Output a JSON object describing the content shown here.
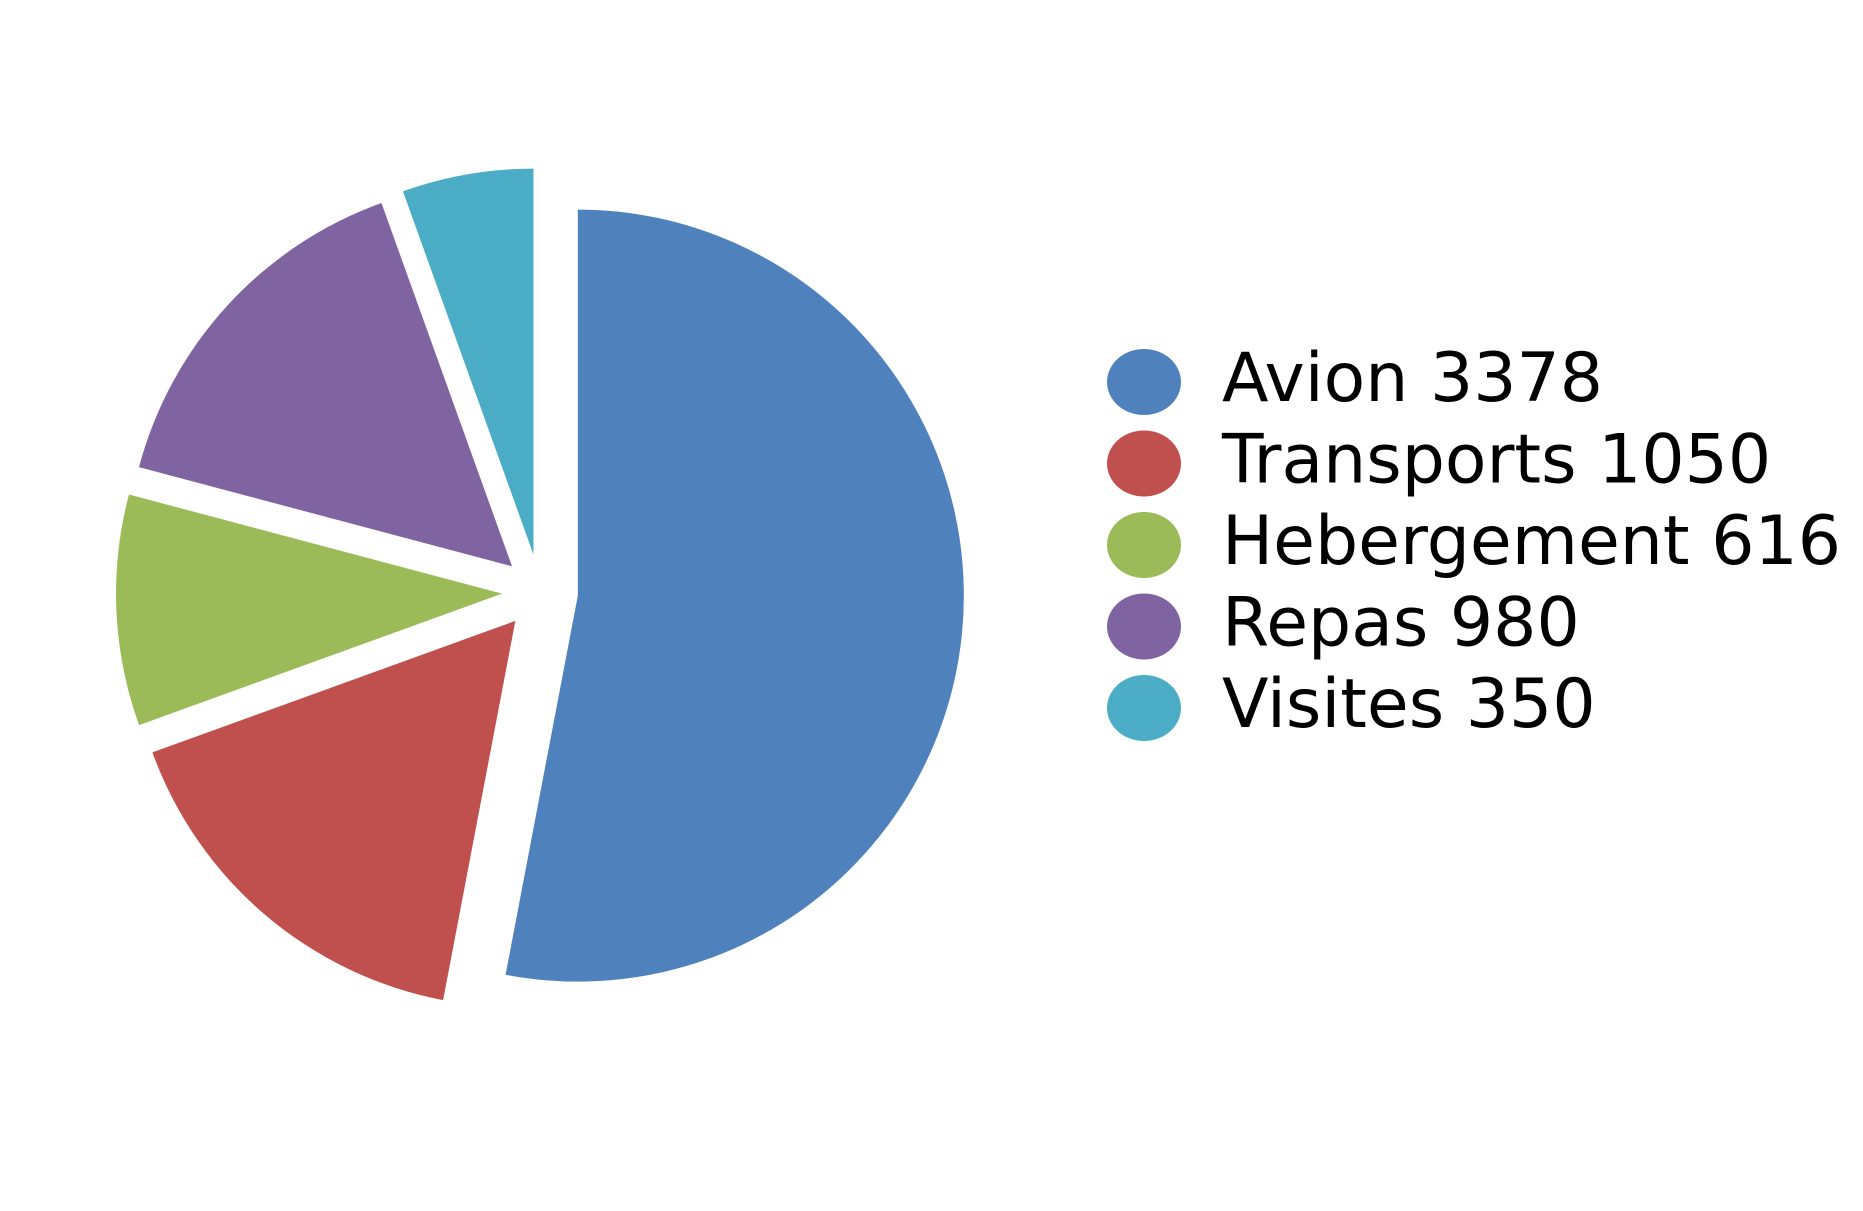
{
  "chart_data": {
    "type": "pie",
    "categories": [
      "Avion",
      "Transports",
      "Hebergement",
      "Repas",
      "Visites"
    ],
    "values": [
      3378,
      1050,
      616,
      980,
      350
    ],
    "colors": [
      "#4f81bd",
      "#c0504d",
      "#9bbb59",
      "#8064a2",
      "#4bacc6"
    ],
    "legend": "right"
  }
}
